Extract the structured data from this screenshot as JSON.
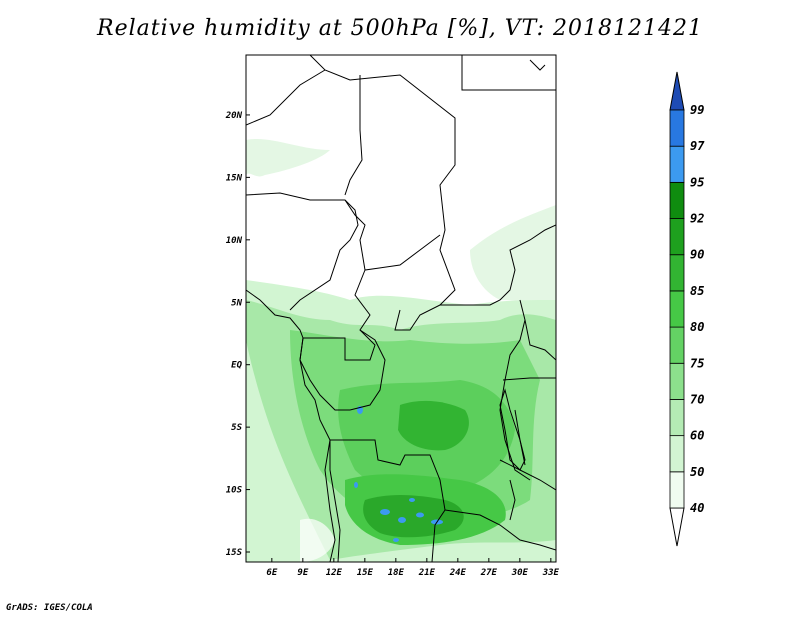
{
  "title": "Relative humidity at 500hPa [%], VT: 2018121421",
  "credit": "GrADS: IGES/COLA",
  "map": {
    "lon_ticks": [
      "6E",
      "9E",
      "12E",
      "15E",
      "18E",
      "21E",
      "24E",
      "27E",
      "30E",
      "33E"
    ],
    "lat_ticks": [
      "20N",
      "15N",
      "10N",
      "5N",
      "EQ",
      "5S",
      "10S",
      "15S"
    ],
    "lon_range": [
      3.5,
      33.5
    ],
    "lat_range": [
      -15.8,
      24.8
    ]
  },
  "colorbar": {
    "levels": [
      "40",
      "50",
      "60",
      "70",
      "75",
      "80",
      "85",
      "90",
      "92",
      "95",
      "97",
      "99"
    ],
    "colors": [
      "#f0fcf0",
      "#d2f5d2",
      "#b4ebb4",
      "#8ce08c",
      "#64d264",
      "#46c846",
      "#32b432",
      "#1ea01e",
      "#0f8c0f",
      "#3c9af0",
      "#2878e1",
      "#1e5ac8"
    ],
    "under_color": "#ffffff",
    "over_color": "#1e4bb4"
  }
}
